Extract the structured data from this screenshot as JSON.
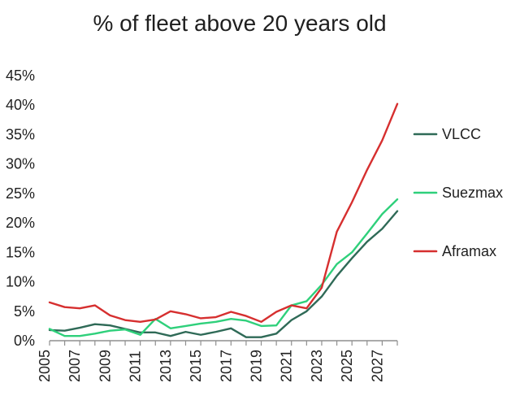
{
  "chart_data": {
    "type": "line",
    "title": "% of fleet above 20 years old",
    "xlabel": "",
    "ylabel": "",
    "x": [
      2005,
      2006,
      2007,
      2008,
      2009,
      2010,
      2011,
      2012,
      2013,
      2014,
      2015,
      2016,
      2017,
      2018,
      2019,
      2020,
      2021,
      2022,
      2023,
      2024,
      2025,
      2026,
      2027,
      2028
    ],
    "x_tick_labels": [
      "2005",
      "2007",
      "2009",
      "2011",
      "2013",
      "2015",
      "2017",
      "2019",
      "2021",
      "2023",
      "2025",
      "2027"
    ],
    "y_tick_labels": [
      "0%",
      "5%",
      "10%",
      "15%",
      "20%",
      "25%",
      "30%",
      "35%",
      "40%",
      "45%"
    ],
    "ylim": [
      0,
      45
    ],
    "xlim": [
      2005,
      2028
    ],
    "grid": false,
    "legend_position": "right",
    "series": [
      {
        "name": "VLCC",
        "color": "#2f6a57",
        "values": [
          1.8,
          1.7,
          2.2,
          2.8,
          2.6,
          2.0,
          1.4,
          1.4,
          0.8,
          1.5,
          1.0,
          1.5,
          2.1,
          0.6,
          0.6,
          1.2,
          3.5,
          5.0,
          7.5,
          11.0,
          14.0,
          16.8,
          19.0,
          22.0
        ]
      },
      {
        "name": "Suezmax",
        "color": "#2fd07b",
        "values": [
          2.0,
          0.8,
          0.8,
          1.2,
          1.7,
          1.9,
          1.0,
          3.7,
          2.1,
          2.5,
          2.9,
          3.2,
          3.7,
          3.4,
          2.5,
          2.6,
          6.0,
          6.7,
          9.5,
          13.0,
          15.0,
          18.2,
          21.5,
          24.0
        ]
      },
      {
        "name": "Aframax",
        "color": "#d62f2f",
        "values": [
          6.5,
          5.7,
          5.5,
          6.0,
          4.3,
          3.5,
          3.2,
          3.6,
          5.0,
          4.5,
          3.8,
          4.0,
          4.9,
          4.2,
          3.2,
          4.9,
          6.0,
          5.5,
          9.0,
          18.5,
          23.5,
          29.0,
          34.0,
          40.2
        ]
      }
    ]
  }
}
